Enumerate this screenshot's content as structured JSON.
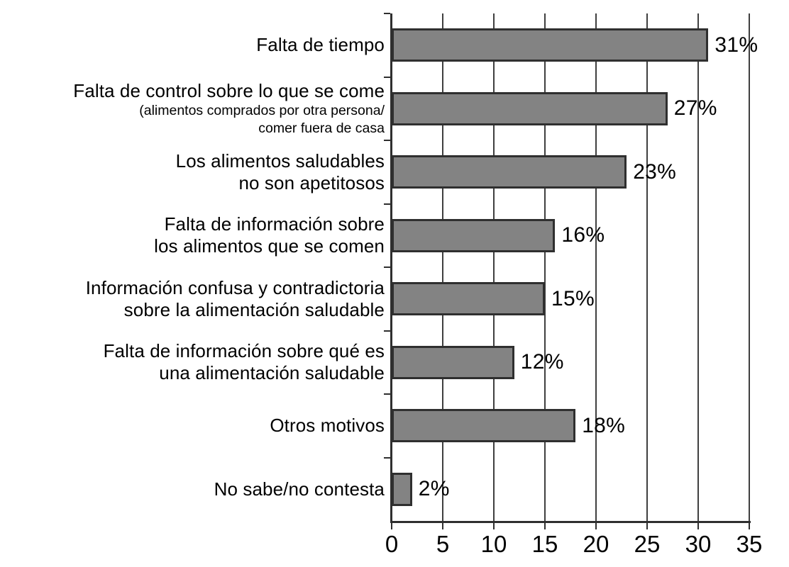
{
  "chart_data": {
    "type": "bar",
    "orientation": "horizontal",
    "title": "",
    "xlabel": "",
    "ylabel": "",
    "xlim": [
      0,
      35
    ],
    "x_ticks": [
      0,
      5,
      10,
      15,
      20,
      25,
      30,
      35
    ],
    "grid": "vertical",
    "legend": false,
    "categories": [
      "Falta de tiempo",
      "Falta de control sobre lo que se come (alimentos comprados por otra persona/ comer fuera de casa",
      "Los alimentos saludables no son apetitosos",
      "Falta de información sobre los alimentos que se comen",
      "Información confusa y contradictoria sobre la alimentación saludable",
      "Falta de información sobre qué es una alimentación saludable",
      "Otros motivos",
      "No sabe/no contesta"
    ],
    "values": [
      31,
      27,
      23,
      16,
      15,
      12,
      18,
      2
    ],
    "value_labels": [
      "31%",
      "27%",
      "23%",
      "16%",
      "15%",
      "12%",
      "18%",
      "2%"
    ],
    "rows": [
      {
        "lines": [
          "Falta de tiempo"
        ],
        "sub_lines": [],
        "value": 31,
        "value_label": "31%"
      },
      {
        "lines": [
          "Falta de control sobre lo que se come"
        ],
        "sub_lines": [
          "(alimentos comprados por otra persona/",
          "comer fuera de casa"
        ],
        "value": 27,
        "value_label": "27%"
      },
      {
        "lines": [
          "Los alimentos saludables",
          "no son apetitosos"
        ],
        "sub_lines": [],
        "value": 23,
        "value_label": "23%"
      },
      {
        "lines": [
          "Falta de información sobre",
          "los alimentos que se comen"
        ],
        "sub_lines": [],
        "value": 16,
        "value_label": "16%"
      },
      {
        "lines": [
          "Información confusa y contradictoria",
          "sobre la alimentación saludable"
        ],
        "sub_lines": [],
        "value": 15,
        "value_label": "15%"
      },
      {
        "lines": [
          "Falta de información sobre qué es",
          "una alimentación saludable"
        ],
        "sub_lines": [],
        "value": 12,
        "value_label": "12%"
      },
      {
        "lines": [
          "Otros motivos"
        ],
        "sub_lines": [],
        "value": 18,
        "value_label": "18%"
      },
      {
        "lines": [
          "No sabe/no contesta"
        ],
        "sub_lines": [],
        "value": 2,
        "value_label": "2%"
      }
    ],
    "colors": {
      "bar_fill": "#838383",
      "bar_border": "#2f2f2f",
      "gridline": "#3f3f3f",
      "axis": "#2f2f2f",
      "text": "#000000",
      "background": "#ffffff"
    }
  }
}
